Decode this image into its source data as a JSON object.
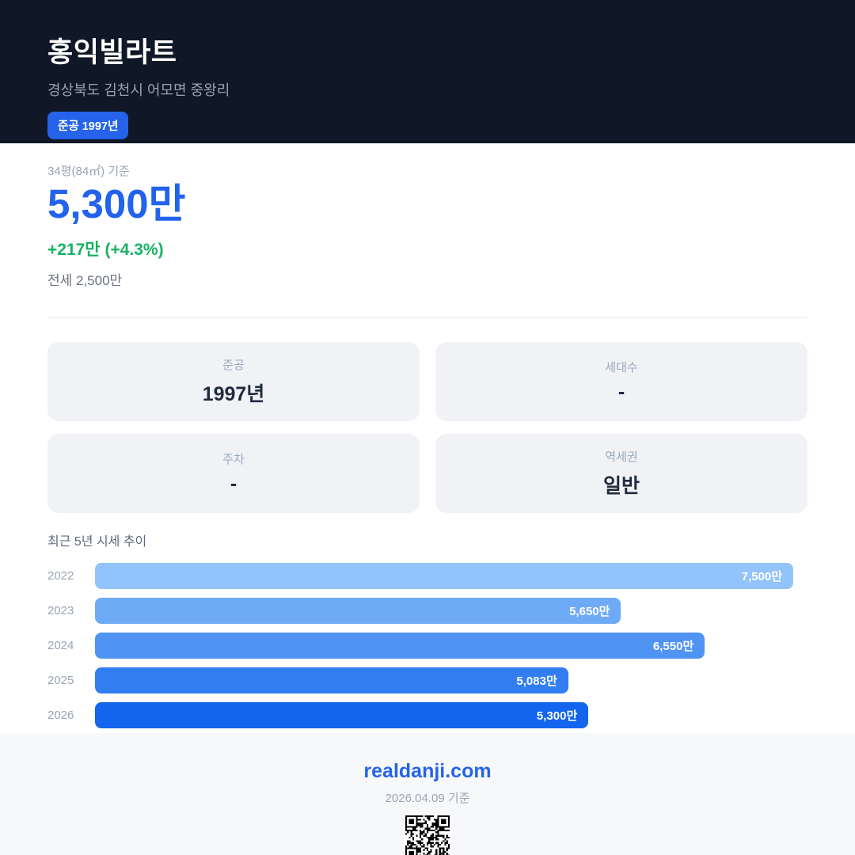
{
  "header": {
    "title": "홍익빌라트",
    "address": "경상북도 김천시 어모면 중왕리",
    "badge": "준공 1997년"
  },
  "price": {
    "basis": "34평(84㎡) 기준",
    "value": "5,300만",
    "change": "+217만 (+4.3%)",
    "jeonse": "전세 2,500만"
  },
  "cards": [
    {
      "label": "준공",
      "value": "1997년"
    },
    {
      "label": "세대수",
      "value": "-"
    },
    {
      "label": "주차",
      "value": "-"
    },
    {
      "label": "역세권",
      "value": "일반"
    }
  ],
  "chart_data": {
    "type": "bar",
    "orientation": "horizontal",
    "title": "최근 5년 시세 추이",
    "categories": [
      "2022",
      "2023",
      "2024",
      "2025",
      "2026"
    ],
    "values": [
      7500,
      5650,
      6550,
      5083,
      5300
    ],
    "value_labels": [
      "7,500만",
      "5,650만",
      "6,550만",
      "5,083만",
      "5,300만"
    ],
    "xlim": [
      0,
      7500
    ],
    "bar_colors": [
      "#92c3fb",
      "#6faaf7",
      "#4f93f3",
      "#327ef0",
      "#1265ec"
    ],
    "legend": "none",
    "grid": false
  },
  "footer": {
    "site": "realdanji.com",
    "date_note": "2026.04.09 기준"
  },
  "colors": {
    "header_bg": "#101726",
    "accent_blue": "#2263ee",
    "badge_blue": "#2563eb",
    "positive_green": "#16b364",
    "card_bg": "#f0f2f6",
    "footer_bg": "#f7f8fa"
  }
}
